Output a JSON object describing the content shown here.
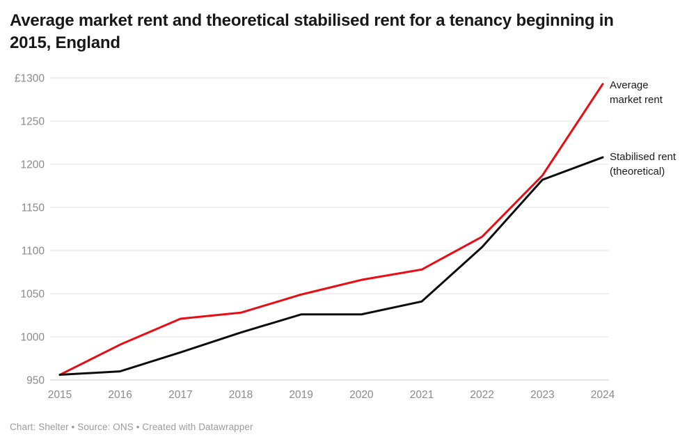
{
  "header": {
    "title": "Average market rent and theoretical stabilised rent for a tenancy beginning in 2015, England"
  },
  "footer": {
    "text": "Chart: Shelter • Source: ONS • Created with Datawrapper"
  },
  "colors": {
    "market_line": "#e90c13",
    "stabilised_line": "#0c0c0c",
    "gridline": "#e0e0e0",
    "baseline": "#c9c9c9",
    "tick_label": "#8a8a8a",
    "title_text": "#181818",
    "footer_text": "#9b9b9b",
    "background": "#ffffff"
  },
  "chart_data": {
    "type": "line",
    "title": "Average market rent and theoretical stabilised rent for a tenancy beginning in 2015, England",
    "x": [
      2015,
      2016,
      2017,
      2018,
      2019,
      2020,
      2021,
      2022,
      2023,
      2024
    ],
    "series": [
      {
        "name": "Average market rent",
        "color": "#e90c13",
        "values": [
          956,
          991,
          1021,
          1028,
          1049,
          1066,
          1078,
          1116,
          1187,
          1293
        ]
      },
      {
        "name": "Stabilised rent (theoretical)",
        "color": "#0c0c0c",
        "values": [
          956,
          960,
          982,
          1005,
          1026,
          1026,
          1041,
          1104,
          1182,
          1208
        ]
      }
    ],
    "ylim": [
      950,
      1300
    ],
    "yticks": [
      950,
      1000,
      1050,
      1100,
      1150,
      1200,
      1250,
      1300
    ],
    "y_top_tick_prefix": "£",
    "xlabel": "",
    "ylabel": "",
    "grid": "horizontal only",
    "legend_position": "right of line ends"
  }
}
